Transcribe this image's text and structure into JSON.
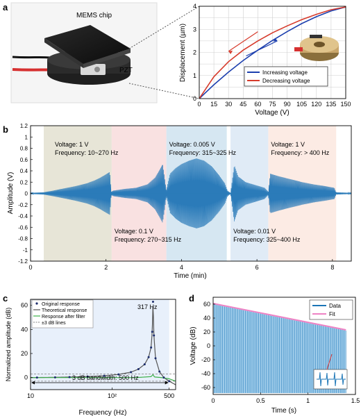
{
  "figure": {
    "panel_labels": [
      "a",
      "b",
      "c",
      "d"
    ]
  },
  "panel_a_photo": {
    "chip_label": "MEMS chip",
    "pzt_label": "PZT"
  },
  "chart_data": [
    {
      "id": "a",
      "type": "line",
      "xlabel": "Voltage (V)",
      "ylabel": "Displacement (µm)",
      "xlim": [
        0,
        150
      ],
      "ylim": [
        0,
        4
      ],
      "xticks": [
        0,
        15,
        30,
        45,
        60,
        75,
        90,
        105,
        120,
        135,
        150
      ],
      "yticks": [
        0,
        1,
        2,
        3,
        4
      ],
      "grid": true,
      "legend_position": "bottom-right",
      "series": [
        {
          "name": "Increasing voltage",
          "color": "#1c3fae",
          "x": [
            0,
            15,
            30,
            45,
            60,
            75,
            90,
            105,
            120,
            135,
            150
          ],
          "y": [
            0,
            0.6,
            1.15,
            1.65,
            2.1,
            2.52,
            2.9,
            3.25,
            3.55,
            3.8,
            3.97
          ]
        },
        {
          "name": "Decreasing voltage",
          "color": "#d63a2b",
          "x": [
            0,
            15,
            30,
            45,
            60,
            75,
            90,
            105,
            120,
            135,
            150
          ],
          "y": [
            0,
            0.95,
            1.6,
            2.1,
            2.5,
            2.85,
            3.15,
            3.42,
            3.65,
            3.85,
            3.97
          ]
        }
      ]
    },
    {
      "id": "b",
      "type": "area",
      "xlabel": "Time (min)",
      "ylabel": "Amplitude (V)",
      "xlim": [
        0,
        8.5
      ],
      "ylim": [
        -1.2,
        1.2
      ],
      "xticks": [
        0,
        2,
        4,
        6,
        8
      ],
      "yticks": [
        -1.2,
        -1,
        -0.8,
        -0.6,
        -0.4,
        -0.2,
        0,
        0.2,
        0.4,
        0.6,
        0.8,
        1,
        1.2
      ],
      "bands": [
        {
          "x": [
            0.35,
            2.15
          ],
          "color": "#e3e0d0",
          "label_lines": [
            "Voltage: 1 V",
            "Frequency: 10~270 Hz"
          ],
          "label_pos": "top"
        },
        {
          "x": [
            2.15,
            3.6
          ],
          "color": "#f8dcdc",
          "label_lines": [
            "Voltage: 0.1 V",
            "Frequency: 270~315 Hz"
          ],
          "label_pos": "bottom"
        },
        {
          "x": [
            3.6,
            5.2
          ],
          "color": "#cfe3f0",
          "label_lines": [
            "Voltage: 0.005 V",
            "Frequency: 315~325 Hz"
          ],
          "label_pos": "top"
        },
        {
          "x": [
            5.3,
            6.3
          ],
          "color": "#dbe7f5",
          "label_lines": [
            "Voltage: 0.01 V",
            "Frequency: 325~400 Hz"
          ],
          "label_pos": "bottom"
        },
        {
          "x": [
            6.3,
            8.1
          ],
          "color": "#fbe8df",
          "label_lines": [
            "Voltage: 1 V",
            "Frequency: > 400 Hz"
          ],
          "label_pos": "top"
        }
      ],
      "envelope": [
        [
          0,
          0.01
        ],
        [
          0.35,
          0.02
        ],
        [
          0.6,
          0.05
        ],
        [
          0.9,
          0.09
        ],
        [
          1.2,
          0.13
        ],
        [
          1.5,
          0.18
        ],
        [
          1.7,
          0.23
        ],
        [
          1.85,
          0.28
        ],
        [
          2.0,
          0.34
        ],
        [
          2.1,
          0.38
        ],
        [
          2.14,
          0.03
        ],
        [
          2.2,
          0.05
        ],
        [
          2.5,
          0.08
        ],
        [
          2.8,
          0.1
        ],
        [
          3.1,
          0.16
        ],
        [
          3.3,
          0.28
        ],
        [
          3.42,
          0.42
        ],
        [
          3.5,
          0.52
        ],
        [
          3.55,
          0.3
        ],
        [
          3.6,
          0.06
        ],
        [
          3.7,
          0.35
        ],
        [
          3.85,
          0.45
        ],
        [
          4.0,
          0.52
        ],
        [
          4.2,
          0.58
        ],
        [
          4.4,
          0.62
        ],
        [
          4.6,
          0.58
        ],
        [
          4.8,
          0.48
        ],
        [
          5.0,
          0.32
        ],
        [
          5.15,
          0.18
        ],
        [
          5.22,
          0.05
        ],
        [
          5.3,
          0.01
        ],
        [
          5.4,
          0.5
        ],
        [
          5.5,
          0.3
        ],
        [
          5.7,
          0.2
        ],
        [
          6.0,
          0.14
        ],
        [
          6.2,
          0.1
        ],
        [
          6.3,
          0.03
        ],
        [
          6.35,
          0.35
        ],
        [
          6.6,
          0.3
        ],
        [
          6.9,
          0.25
        ],
        [
          7.2,
          0.2
        ],
        [
          7.5,
          0.16
        ],
        [
          7.8,
          0.13
        ],
        [
          8.05,
          0.1
        ],
        [
          8.1,
          0.02
        ],
        [
          8.5,
          0.01
        ]
      ]
    },
    {
      "id": "c",
      "type": "line",
      "xlabel": "Frequency (Hz)",
      "ylabel": "Normalized amplitude (dB)",
      "xscale": "log",
      "xlim": [
        10,
        600
      ],
      "ylim": [
        -10,
        65
      ],
      "xticks": [
        10,
        100,
        500
      ],
      "xtick_labels": [
        "10",
        "10²",
        "500"
      ],
      "yticks": [
        0,
        20,
        40,
        60
      ],
      "shaded_band": [
        10,
        500
      ],
      "peak_label": "317 Hz",
      "bandwidth_label": "3 dB bandwidth: 500 Hz",
      "legend_position": "top-left",
      "series": [
        {
          "name": "Original response",
          "color": "#1a2b6b",
          "style": "points",
          "x": [
            12,
            20,
            30,
            50,
            80,
            120,
            170,
            210,
            250,
            280,
            300,
            310,
            317,
            325,
            340,
            380,
            430,
            500
          ],
          "y": [
            0,
            0.2,
            0.4,
            0.8,
            1.5,
            2.6,
            4.5,
            7,
            11,
            17,
            25,
            38,
            63,
            35,
            16,
            5,
            0,
            -3
          ]
        },
        {
          "name": "Theoretical response",
          "color": "#555555",
          "style": "line",
          "x": [
            10,
            20,
            40,
            80,
            120,
            170,
            210,
            250,
            280,
            300,
            310,
            317,
            325,
            340,
            380,
            430,
            500,
            600
          ],
          "y": [
            0,
            0.2,
            0.6,
            1.5,
            2.6,
            4.5,
            7,
            11,
            17,
            25,
            38,
            63,
            35,
            16,
            5,
            0,
            -3,
            -6
          ]
        },
        {
          "name": "Response after filter",
          "color": "#3cb04a",
          "style": "line",
          "x": [
            10,
            50,
            100,
            200,
            300,
            317,
            330,
            400,
            500,
            600
          ],
          "y": [
            0,
            0,
            0,
            0,
            0.8,
            2.5,
            0.5,
            0,
            -1,
            -3
          ]
        },
        {
          "name": "±3 dB lines",
          "color": "#7f7f7f",
          "style": "dashed",
          "x": [
            10,
            600
          ],
          "y": [
            3,
            3
          ]
        }
      ],
      "hlines": [
        3,
        -3
      ]
    },
    {
      "id": "d",
      "type": "area",
      "xlabel": "Time (s)",
      "ylabel": "Voltage (dB)",
      "xlim": [
        0,
        1.5
      ],
      "ylim": [
        -70,
        70
      ],
      "xticks": [
        0,
        0.5,
        1,
        1.5
      ],
      "yticks": [
        -60,
        -40,
        -20,
        0,
        20,
        40,
        60
      ],
      "legend_position": "top-right",
      "series": [
        {
          "name": "Data",
          "color": "#1b75b6",
          "x": [
            0,
            1.4
          ],
          "y_upper": [
            60,
            22
          ],
          "y_lower": [
            -68,
            -68
          ]
        },
        {
          "name": "Fit",
          "color": "#ee82c4",
          "x": [
            0,
            1.4
          ],
          "y": [
            61,
            23
          ]
        }
      ]
    }
  ]
}
